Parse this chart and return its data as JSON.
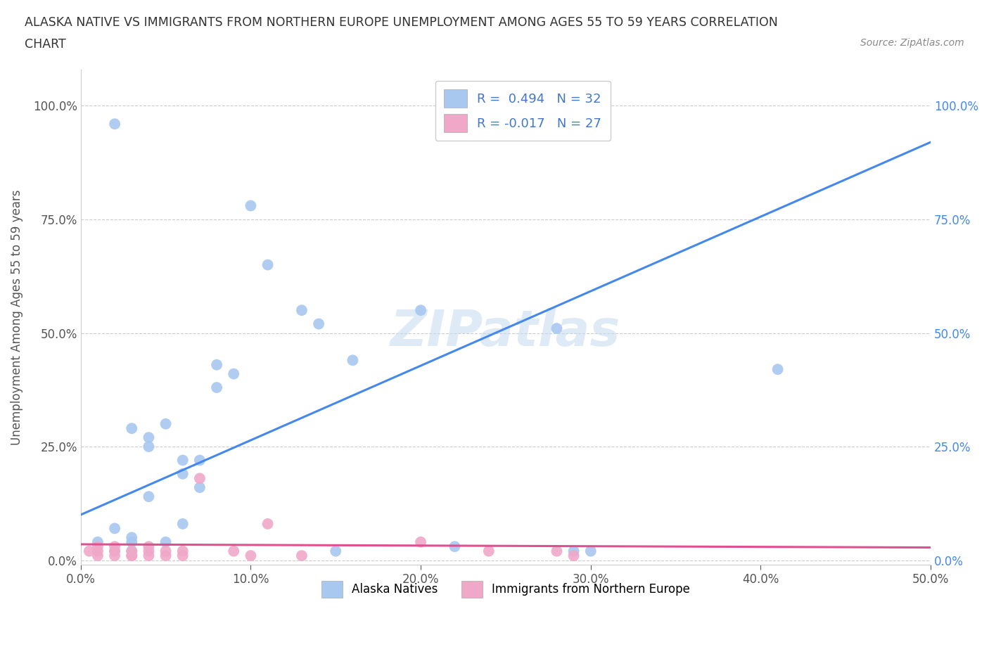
{
  "title_line1": "ALASKA NATIVE VS IMMIGRANTS FROM NORTHERN EUROPE UNEMPLOYMENT AMONG AGES 55 TO 59 YEARS CORRELATION",
  "title_line2": "CHART",
  "source_text": "Source: ZipAtlas.com",
  "ylabel": "Unemployment Among Ages 55 to 59 years",
  "xlim": [
    0.0,
    0.5
  ],
  "ylim": [
    -0.01,
    1.08
  ],
  "xtick_labels": [
    "0.0%",
    "10.0%",
    "20.0%",
    "30.0%",
    "40.0%",
    "50.0%"
  ],
  "xtick_vals": [
    0.0,
    0.1,
    0.2,
    0.3,
    0.4,
    0.5
  ],
  "ytick_labels": [
    "0.0%",
    "25.0%",
    "50.0%",
    "75.0%",
    "100.0%"
  ],
  "ytick_vals": [
    0.0,
    0.25,
    0.5,
    0.75,
    1.0
  ],
  "alaska_native_color": "#a8c8f0",
  "immigrants_color": "#f0a8c8",
  "alaska_native_scatter": [
    [
      0.02,
      0.96
    ],
    [
      0.03,
      0.02
    ],
    [
      0.03,
      0.04
    ],
    [
      0.03,
      0.05
    ],
    [
      0.04,
      0.27
    ],
    [
      0.04,
      0.25
    ],
    [
      0.05,
      0.3
    ],
    [
      0.05,
      0.04
    ],
    [
      0.06,
      0.22
    ],
    [
      0.06,
      0.19
    ],
    [
      0.07,
      0.16
    ],
    [
      0.07,
      0.22
    ],
    [
      0.08,
      0.43
    ],
    [
      0.08,
      0.38
    ],
    [
      0.09,
      0.41
    ],
    [
      0.1,
      0.78
    ],
    [
      0.11,
      0.65
    ],
    [
      0.13,
      0.55
    ],
    [
      0.14,
      0.52
    ],
    [
      0.15,
      0.02
    ],
    [
      0.16,
      0.44
    ],
    [
      0.2,
      0.55
    ],
    [
      0.22,
      0.03
    ],
    [
      0.28,
      0.51
    ],
    [
      0.29,
      0.02
    ],
    [
      0.3,
      0.02
    ],
    [
      0.41,
      0.42
    ],
    [
      0.01,
      0.04
    ],
    [
      0.02,
      0.07
    ],
    [
      0.03,
      0.29
    ],
    [
      0.04,
      0.14
    ],
    [
      0.06,
      0.08
    ]
  ],
  "immigrants_scatter": [
    [
      0.005,
      0.02
    ],
    [
      0.01,
      0.01
    ],
    [
      0.01,
      0.02
    ],
    [
      0.01,
      0.03
    ],
    [
      0.02,
      0.01
    ],
    [
      0.02,
      0.02
    ],
    [
      0.02,
      0.03
    ],
    [
      0.02,
      0.02
    ],
    [
      0.03,
      0.01
    ],
    [
      0.03,
      0.02
    ],
    [
      0.03,
      0.01
    ],
    [
      0.04,
      0.02
    ],
    [
      0.04,
      0.01
    ],
    [
      0.04,
      0.03
    ],
    [
      0.05,
      0.01
    ],
    [
      0.05,
      0.02
    ],
    [
      0.06,
      0.02
    ],
    [
      0.06,
      0.01
    ],
    [
      0.07,
      0.18
    ],
    [
      0.09,
      0.02
    ],
    [
      0.1,
      0.01
    ],
    [
      0.11,
      0.08
    ],
    [
      0.13,
      0.01
    ],
    [
      0.2,
      0.04
    ],
    [
      0.24,
      0.02
    ],
    [
      0.28,
      0.02
    ],
    [
      0.29,
      0.01
    ]
  ],
  "alaska_R": 0.494,
  "alaska_N": 32,
  "immigrants_R": -0.017,
  "immigrants_N": 27,
  "trendline_alaska_x0": 0.0,
  "trendline_alaska_y0": 0.1,
  "trendline_alaska_x1": 0.5,
  "trendline_alaska_y1": 0.92,
  "trendline_immig_x0": 0.0,
  "trendline_immig_y0": 0.035,
  "trendline_immig_x1": 0.5,
  "trendline_immig_y1": 0.028,
  "watermark": "ZIPatlas",
  "background_color": "#ffffff",
  "grid_color": "#cccccc"
}
